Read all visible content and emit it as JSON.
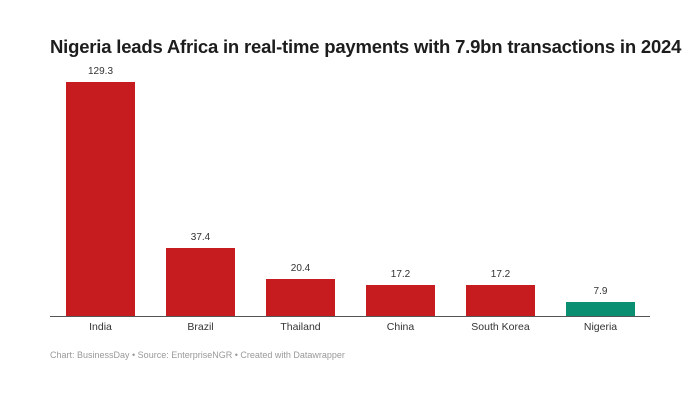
{
  "chart_data": {
    "type": "bar",
    "title": "Nigeria leads Africa in real-time payments with 7.9bn transactions in 2024",
    "categories": [
      "India",
      "Brazil",
      "Thailand",
      "China",
      "South Korea",
      "Nigeria"
    ],
    "values": [
      129.3,
      37.4,
      20.4,
      17.2,
      17.2,
      7.9
    ],
    "value_labels": [
      "129.3",
      "37.4",
      "20.4",
      "17.2",
      "17.2",
      "7.9"
    ],
    "colors": [
      "#c71c1f",
      "#c71c1f",
      "#c71c1f",
      "#c71c1f",
      "#c71c1f",
      "#0a8f73"
    ],
    "xlabel": "",
    "ylabel": "",
    "ylim": [
      0,
      129.3
    ],
    "grid": false,
    "legend": "none",
    "unit": "billion transactions"
  },
  "footer": "Chart: BusinessDay • Source: EnterpriseNGR • Created with Datawrapper"
}
